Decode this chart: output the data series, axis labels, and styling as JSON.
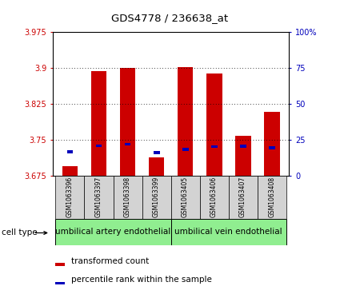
{
  "title": "GDS4778 / 236638_at",
  "samples": [
    "GSM1063396",
    "GSM1063397",
    "GSM1063398",
    "GSM1063399",
    "GSM1063405",
    "GSM1063406",
    "GSM1063407",
    "GSM1063408"
  ],
  "red_bar_tops": [
    3.695,
    3.893,
    3.9,
    3.713,
    3.902,
    3.888,
    3.758,
    3.808
  ],
  "red_bar_bottoms": [
    3.675,
    3.675,
    3.675,
    3.675,
    3.675,
    3.675,
    3.675,
    3.675
  ],
  "blue_y": [
    3.724,
    3.737,
    3.74,
    3.723,
    3.729,
    3.735,
    3.736,
    3.733
  ],
  "ylim_left": [
    3.675,
    3.975
  ],
  "ylim_right": [
    0,
    100
  ],
  "yticks_left": [
    3.675,
    3.75,
    3.825,
    3.9,
    3.975
  ],
  "yticks_right": [
    0,
    25,
    50,
    75,
    100
  ],
  "ytick_labels_left": [
    "3.675",
    "3.75",
    "3.825",
    "3.9",
    "3.975"
  ],
  "ytick_labels_right": [
    "0",
    "25",
    "50",
    "75",
    "100%"
  ],
  "cell_type_labels": [
    "umbilical artery endothelial",
    "umbilical vein endothelial"
  ],
  "cell_type_ranges": [
    [
      0,
      4
    ],
    [
      4,
      8
    ]
  ],
  "bar_color": "#cc0000",
  "blue_color": "#0000bb",
  "bg_color": "#ffffff",
  "plot_bg": "#ffffff",
  "tick_label_color_left": "#cc0000",
  "tick_label_color_right": "#0000bb",
  "bar_width": 0.55,
  "legend_items": [
    "transformed count",
    "percentile rank within the sample"
  ]
}
